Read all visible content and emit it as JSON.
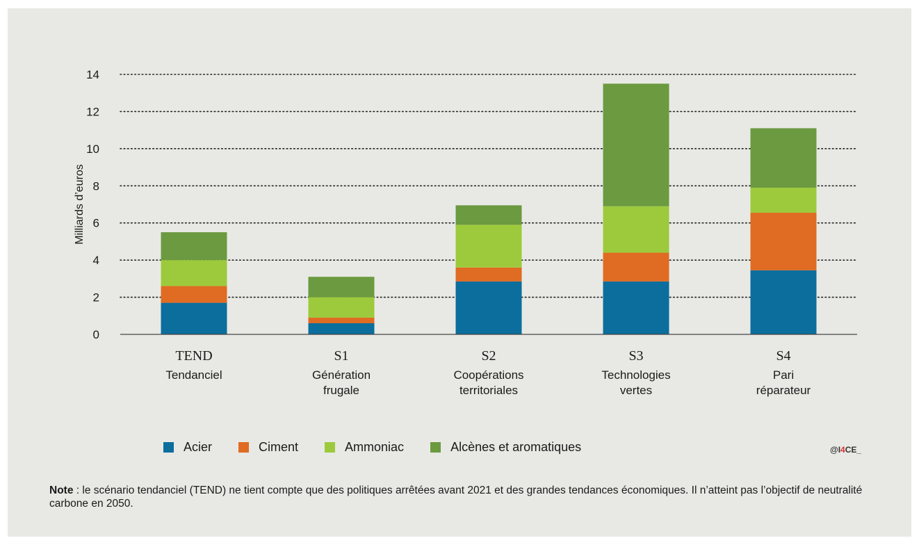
{
  "chart_data": {
    "type": "bar",
    "stacked": true,
    "ylabel": "Milliards d’euros",
    "ylim": [
      0,
      14
    ],
    "yticks": [
      0,
      2,
      4,
      6,
      8,
      10,
      12,
      14
    ],
    "grid": "dotted-horizontal",
    "categories": [
      {
        "code": "TEND",
        "name": [
          "Tendanciel"
        ]
      },
      {
        "code": "S1",
        "name": [
          "Génération",
          "frugale"
        ]
      },
      {
        "code": "S2",
        "name": [
          "Coopérations",
          "territoriales"
        ]
      },
      {
        "code": "S3",
        "name": [
          "Technologies",
          "vertes"
        ]
      },
      {
        "code": "S4",
        "name": [
          "Pari",
          "réparateur"
        ]
      }
    ],
    "series": [
      {
        "name": "Acier",
        "color": "#0b6e9d",
        "values": [
          1.7,
          0.6,
          2.85,
          2.85,
          3.45
        ]
      },
      {
        "name": "Ciment",
        "color": "#e06b22",
        "values": [
          0.9,
          0.3,
          0.75,
          1.55,
          3.1
        ]
      },
      {
        "name": "Ammoniac",
        "color": "#9dca3c",
        "values": [
          1.4,
          1.1,
          2.3,
          2.5,
          1.35
        ]
      },
      {
        "name": "Alcènes et aromatiques",
        "color": "#6b9a40",
        "values": [
          1.5,
          1.1,
          1.05,
          6.6,
          3.2
        ]
      }
    ],
    "legend_position": "bottom"
  },
  "credit": {
    "prefix": "@I",
    "accent": "4",
    "suffix": "CE_"
  },
  "note": {
    "label": "Note",
    "text": " : le scénario tendanciel (TEND) ne tient compte que des politiques arrêtées avant 2021 et des grandes tendances économiques. Il n’atteint pas l’objectif de neutralité carbone en 2050."
  }
}
